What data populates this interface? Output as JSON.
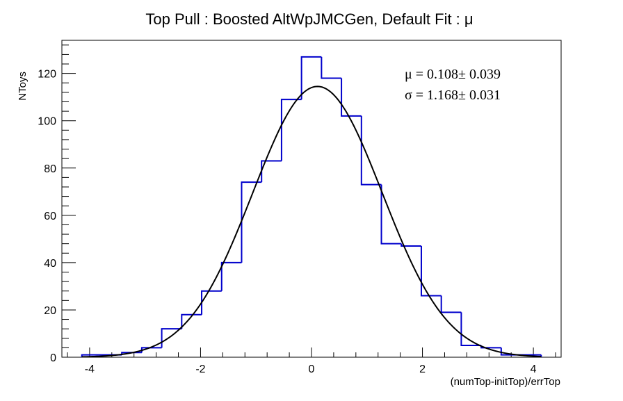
{
  "chart_data": {
    "type": "bar",
    "title": "Top Pull : Boosted AltWpJMCGen, Default Fit : μ",
    "xlabel": "(numTop-initTop)/errTop",
    "ylabel": "NToys",
    "xlim": [
      -4.5,
      4.5
    ],
    "ylim": [
      0,
      134
    ],
    "x_ticks": [
      -4,
      -2,
      0,
      2,
      4
    ],
    "x_tick_labels": [
      "-4",
      "-2",
      "0",
      "2",
      "4"
    ],
    "y_ticks": [
      0,
      20,
      40,
      60,
      80,
      100,
      120
    ],
    "y_tick_labels": [
      "0",
      "20",
      "40",
      "60",
      "80",
      "100",
      "120"
    ],
    "grid": false,
    "series": [
      {
        "name": "",
        "kind": "histogram",
        "color": "#0000cc",
        "bin_width": 0.36,
        "bin_low_edges": [
          -4.14,
          -3.78,
          -3.42,
          -3.06,
          -2.7,
          -2.34,
          -1.98,
          -1.62,
          -1.26,
          -0.9,
          -0.54,
          -0.18,
          0.18,
          0.54,
          0.9,
          1.26,
          1.62,
          1.98,
          2.34,
          2.7,
          3.06,
          3.42,
          3.78
        ],
        "values": [
          1,
          1,
          2,
          4,
          12,
          18,
          28,
          40,
          74,
          83,
          109,
          127,
          118,
          102,
          73,
          48,
          47,
          26,
          19,
          5,
          4,
          1,
          1
        ]
      },
      {
        "name": "",
        "kind": "gaussian-fit",
        "color": "#000000",
        "mean": 0.108,
        "sigma": 1.168,
        "peak": 114.5,
        "x_range": [
          -4.14,
          4.14
        ]
      }
    ],
    "stats": [
      {
        "label": "μ =  0.108± 0.039"
      },
      {
        "label": "σ =  1.168± 0.031"
      }
    ]
  }
}
